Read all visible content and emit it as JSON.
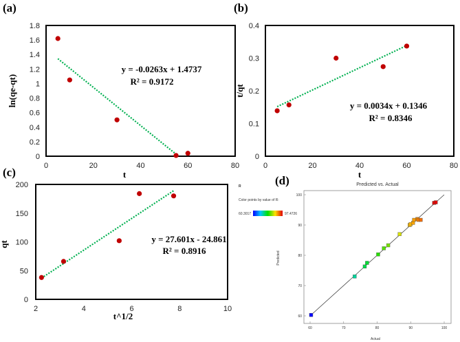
{
  "chart_data": [
    {
      "type": "scatter",
      "panel_label": "(a)",
      "xlabel": "t",
      "ylabel": "ln(qe-qt)",
      "xlim": [
        0,
        80
      ],
      "ylim": [
        0,
        1.8
      ],
      "xticks": [
        "0",
        "20",
        "40",
        "60",
        "80"
      ],
      "yticks": [
        "0",
        "0.2",
        "0.4",
        "0.6",
        "0.8",
        "1",
        "1.2",
        "1.4",
        "1.6",
        "1.8"
      ],
      "points": [
        [
          5,
          1.62
        ],
        [
          10,
          1.05
        ],
        [
          30,
          0.5
        ],
        [
          55,
          0.01
        ],
        [
          60,
          0.04
        ]
      ],
      "trendline": {
        "slope": -0.0263,
        "intercept": 1.4737,
        "x_range": [
          5,
          55
        ]
      },
      "equation": "y = -0.0263x + 1.4737",
      "r_squared": "R² = 0.9172",
      "marker_color": "#c00000",
      "line_color": "#00b050",
      "grid": false
    },
    {
      "type": "scatter",
      "panel_label": "(b)",
      "xlabel": "t",
      "ylabel": "t/qt",
      "xlim": [
        0,
        80
      ],
      "ylim": [
        0,
        0.4
      ],
      "xticks": [
        "0",
        "20",
        "40",
        "60",
        "80"
      ],
      "yticks": [
        "0",
        "0.1",
        "0.2",
        "0.3",
        "0.4"
      ],
      "points": [
        [
          5,
          0.139
        ],
        [
          10,
          0.157
        ],
        [
          30,
          0.3
        ],
        [
          50,
          0.274
        ],
        [
          60,
          0.337
        ]
      ],
      "trendline": {
        "slope": 0.0034,
        "intercept": 0.1346,
        "x_range": [
          5,
          60
        ]
      },
      "equation": "y = 0.0034x + 0.1346",
      "r_squared": "R² = 0.8346",
      "marker_color": "#c00000",
      "line_color": "#00b050",
      "grid": false
    },
    {
      "type": "scatter",
      "panel_label": "(c)",
      "xlabel": "t^1/2",
      "ylabel": "qt",
      "xlim": [
        2,
        10
      ],
      "ylim": [
        0,
        200
      ],
      "xticks": [
        "2",
        "4",
        "6",
        "8",
        "10"
      ],
      "yticks": [
        "0",
        "50",
        "100",
        "150",
        "200"
      ],
      "points": [
        [
          2.24,
          38
        ],
        [
          3.16,
          66
        ],
        [
          5.48,
          102
        ],
        [
          6.32,
          184
        ],
        [
          7.75,
          180
        ]
      ],
      "trendline": {
        "slope": 27.601,
        "intercept": -24.861,
        "x_range": [
          2.24,
          7.75
        ]
      },
      "equation": "y = 27.601x - 24.861",
      "r_squared": "R² = 0.8916",
      "marker_color": "#c00000",
      "line_color": "#00b050",
      "grid": false
    },
    {
      "type": "scatter",
      "panel_label": "(d)",
      "title": "Predicted vs. Actual",
      "xlabel": "Actual",
      "ylabel": "Predicted",
      "xlim": [
        60,
        100
      ],
      "ylim": [
        60,
        100
      ],
      "xticks": [
        "60",
        "70",
        "80",
        "90",
        "100"
      ],
      "yticks": [
        "60",
        "70",
        "80",
        "90",
        "100"
      ],
      "color_legend_title": "R",
      "color_legend_caption": "Color points by value of R:",
      "color_min": "60.3017",
      "color_max": "97.4726",
      "points": [
        [
          60.3,
          60.3
        ],
        [
          73.3,
          73.0
        ],
        [
          76.3,
          76.3
        ],
        [
          77.0,
          77.5
        ],
        [
          80.3,
          80.3
        ],
        [
          82.0,
          82.3
        ],
        [
          83.3,
          83.3
        ],
        [
          86.7,
          87.0
        ],
        [
          89.7,
          90.0
        ],
        [
          90.0,
          90.3
        ],
        [
          90.7,
          90.7
        ],
        [
          91.0,
          91.7
        ],
        [
          92.0,
          92.0
        ],
        [
          92.3,
          91.7
        ],
        [
          93.0,
          91.7
        ],
        [
          97.0,
          97.3
        ],
        [
          97.5,
          97.5
        ]
      ],
      "diagonal": true
    }
  ]
}
